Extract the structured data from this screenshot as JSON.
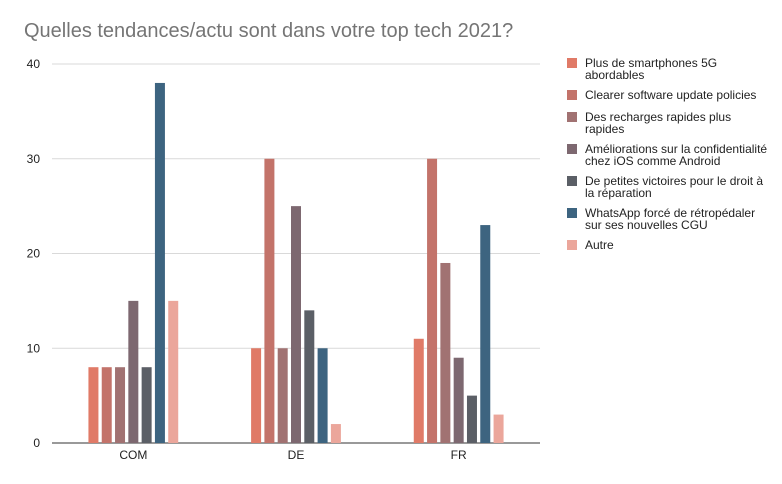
{
  "chart_data": {
    "type": "bar",
    "title": "Quelles tendances/actu sont dans votre top tech 2021?",
    "categories": [
      "COM",
      "DE",
      "FR"
    ],
    "ylim": [
      0,
      40
    ],
    "yticks": [
      0,
      10,
      20,
      30,
      40
    ],
    "grid": true,
    "legend_position": "right",
    "series": [
      {
        "name": "Plus de smartphones 5G abordables",
        "legend_lines": [
          "Plus de smartphones 5G",
          "abordables"
        ],
        "color": "#E07A67",
        "values": [
          8,
          10,
          11
        ]
      },
      {
        "name": "Clearer software update policies",
        "legend_lines": [
          "Clearer software update policies"
        ],
        "color": "#C3736A",
        "values": [
          8,
          30,
          30
        ]
      },
      {
        "name": "Des recharges rapides plus rapides",
        "legend_lines": [
          "Des recharges rapides plus",
          "rapides"
        ],
        "color": "#A17272",
        "values": [
          8,
          10,
          19
        ]
      },
      {
        "name": "Améliorations sur la confidentialité chez iOS comme Android",
        "legend_lines": [
          "Améliorations sur la confidentialité",
          "chez iOS comme Android"
        ],
        "color": "#7D6870",
        "values": [
          15,
          25,
          9
        ]
      },
      {
        "name": "De petites victoires pour le droit à la réparation",
        "legend_lines": [
          "De petites victoires pour le droit à",
          "la réparation"
        ],
        "color": "#5B5F66",
        "values": [
          8,
          14,
          5
        ]
      },
      {
        "name": "WhatsApp forcé de rétropédaler sur ses nouvelles CGU",
        "legend_lines": [
          "WhatsApp forcé de rétropédaler",
          "sur ses nouvelles CGU"
        ],
        "color": "#3D6480",
        "values": [
          38,
          10,
          23
        ]
      },
      {
        "name": "Autre",
        "legend_lines": [
          "Autre"
        ],
        "color": "#EBA69B",
        "values": [
          15,
          2,
          3
        ]
      }
    ]
  }
}
